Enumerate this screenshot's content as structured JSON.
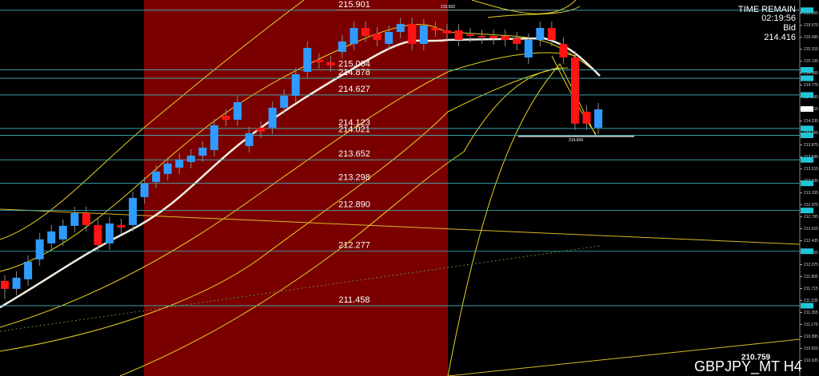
{
  "chart_data": {
    "type": "candlestick",
    "symbol": "GBPJPY_MT H4",
    "time_remain_label": "TIME REMAIN",
    "time_remain": "02:19:56",
    "bid_label": "Bid",
    "bid": 214.416,
    "high_mark": 215.902,
    "low_mark": 214.004,
    "lowest_mark": 210.759,
    "up_color": "#2f9bff",
    "down_color": "#ff1414",
    "shade_color": "#7a0000",
    "level_color": "#3fb8c0",
    "ylim": [
      210.401,
      216.055
    ],
    "yticks": [
      215.855,
      215.675,
      215.495,
      215.315,
      215.135,
      214.955,
      214.775,
      214.595,
      214.415,
      214.235,
      214.055,
      213.875,
      213.695,
      213.515,
      213.335,
      213.155,
      212.975,
      212.795,
      212.615,
      212.435,
      212.255,
      212.075,
      211.895,
      211.715,
      211.535,
      211.355,
      211.175,
      210.995,
      210.815,
      210.635
    ],
    "levels": [
      215.901,
      215.004,
      214.878,
      214.627,
      214.123,
      214.021,
      213.652,
      213.298,
      {
        "value": 212.89,
        "label": "212.890"
      },
      212.277,
      211.458
    ],
    "categories": [
      null,
      null,
      null,
      null,
      null,
      null,
      null,
      null,
      null,
      null,
      null,
      null,
      null,
      null,
      null,
      null,
      null,
      null,
      null,
      null,
      null,
      null,
      null,
      null,
      null,
      null,
      null,
      null,
      null,
      null,
      null,
      null,
      null,
      null,
      null,
      null,
      null,
      null,
      null,
      null,
      null,
      null,
      null,
      null,
      null,
      null,
      null,
      null,
      null,
      null,
      null,
      null
    ],
    "open": [
      211.831,
      211.711,
      211.855,
      212.155,
      212.395,
      212.455,
      212.659,
      212.851,
      212.671,
      212.395,
      212.671,
      212.671,
      213.091,
      213.319,
      213.439,
      213.535,
      213.619,
      213.715,
      213.799,
      214.315,
      214.255,
      213.859,
      214.135,
      214.135,
      214.435,
      214.615,
      214.975,
      215.155,
      215.119,
      215.275,
      215.395,
      215.635,
      215.551,
      215.395,
      215.575,
      215.695,
      215.395,
      215.635,
      215.599,
      215.599,
      215.539,
      215.515,
      215.515,
      215.515,
      215.479,
      215.191,
      215.455,
      215.635,
      215.395,
      215.191,
      214.375,
      214.135
    ],
    "high": [
      211.915,
      211.975,
      212.215,
      212.551,
      212.671,
      212.755,
      212.947,
      212.947,
      212.767,
      212.791,
      212.767,
      213.175,
      213.391,
      213.571,
      213.691,
      213.751,
      213.811,
      213.931,
      214.267,
      214.411,
      214.615,
      214.147,
      214.231,
      214.531,
      214.711,
      215.035,
      215.431,
      215.251,
      215.215,
      215.527,
      215.731,
      215.731,
      215.647,
      215.671,
      215.791,
      215.791,
      215.767,
      215.731,
      215.695,
      215.695,
      215.635,
      215.611,
      215.611,
      215.611,
      215.575,
      215.551,
      215.731,
      215.731,
      215.491,
      215.287,
      214.471,
      214.507
    ],
    "low": [
      211.555,
      211.615,
      211.759,
      212.059,
      212.299,
      212.359,
      212.563,
      212.575,
      212.275,
      212.299,
      212.539,
      212.575,
      212.995,
      213.223,
      213.343,
      213.439,
      213.523,
      213.619,
      213.703,
      214.159,
      214.159,
      213.763,
      213.979,
      214.039,
      214.339,
      214.519,
      214.879,
      215.023,
      214.975,
      215.179,
      215.299,
      215.419,
      215.359,
      215.299,
      215.479,
      215.299,
      215.299,
      215.503,
      215.455,
      215.359,
      215.419,
      215.395,
      215.383,
      215.359,
      215.299,
      215.095,
      215.359,
      215.359,
      215.095,
      214.099,
      214.099,
      214.039
    ],
    "close": [
      211.711,
      211.879,
      212.119,
      212.455,
      212.575,
      212.659,
      212.851,
      212.671,
      212.371,
      212.695,
      212.635,
      213.079,
      213.295,
      213.475,
      213.595,
      213.655,
      213.715,
      213.835,
      214.171,
      214.255,
      214.519,
      214.051,
      214.075,
      214.435,
      214.615,
      214.939,
      215.335,
      215.119,
      215.071,
      215.431,
      215.635,
      215.515,
      215.455,
      215.575,
      215.695,
      215.395,
      215.671,
      215.599,
      215.551,
      215.455,
      215.515,
      215.491,
      215.479,
      215.455,
      215.395,
      215.455,
      215.635,
      215.455,
      215.191,
      214.195,
      214.195,
      214.411
    ]
  }
}
